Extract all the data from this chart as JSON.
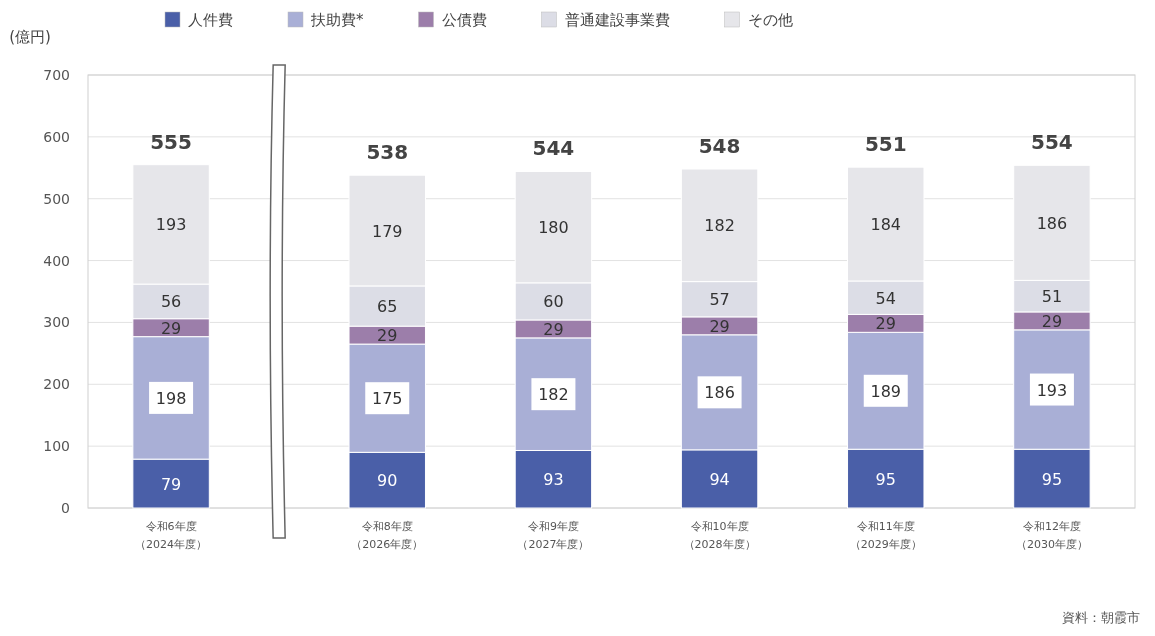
{
  "chart_data": {
    "type": "bar",
    "stacked": true,
    "ylabel": "(億円)",
    "categories": [
      "令和6年度（2024年度）",
      "令和8年度（2026年度）",
      "令和9年度（2027年度）",
      "令和10年度（2028年度）",
      "令和11年度（2029年度）",
      "令和12年度（2030年度）"
    ],
    "series": [
      {
        "name": "人件費",
        "color": "#4a5fa8",
        "values": [
          79,
          90,
          93,
          94,
          95,
          95
        ]
      },
      {
        "name": "扶助費*",
        "color": "#a9afd6",
        "values": [
          198,
          175,
          182,
          186,
          189,
          193
        ]
      },
      {
        "name": "公債費",
        "color": "#9c7eaa",
        "values": [
          29,
          29,
          29,
          29,
          29,
          29
        ]
      },
      {
        "name": "普通建設事業費",
        "color": "#dcdde6",
        "values": [
          56,
          65,
          60,
          57,
          54,
          51
        ]
      },
      {
        "name": "その他",
        "color": "#e6e6ea",
        "values": [
          193,
          179,
          180,
          182,
          184,
          186
        ]
      }
    ],
    "totals": [
      "555",
      "538",
      "544",
      "548",
      "551",
      "554"
    ],
    "ylim": [
      0,
      700
    ],
    "yticks": [
      0,
      100,
      200,
      300,
      400,
      500,
      600,
      700
    ],
    "grid": "y",
    "legend": "top",
    "data_labels": true,
    "annotations": [
      "資料：朝霞市"
    ]
  }
}
